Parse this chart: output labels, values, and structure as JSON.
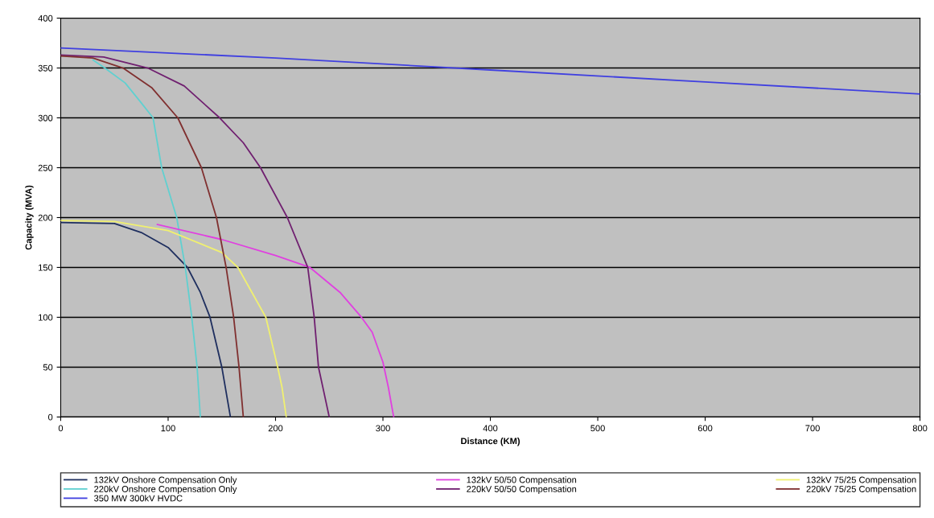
{
  "chart_data": {
    "type": "line",
    "xlabel": "Distance (KM)",
    "ylabel": "Capacity (MVA)",
    "xlim": [
      0,
      800
    ],
    "ylim": [
      0,
      400
    ],
    "xticks": [
      0,
      100,
      200,
      300,
      400,
      500,
      600,
      700,
      800
    ],
    "yticks": [
      0,
      50,
      100,
      150,
      200,
      250,
      300,
      350,
      400
    ],
    "grid": "y",
    "legend": "bottom",
    "marker": "none",
    "line_style": "solid",
    "series": [
      {
        "name": "132kV Onshore Compensation Only",
        "color": "#1f2f5f",
        "x": [
          0,
          50,
          75,
          100,
          118,
          130,
          139,
          150,
          158
        ],
        "values": [
          195,
          194,
          185,
          170,
          150,
          125,
          100,
          50,
          0
        ]
      },
      {
        "name": "220kV Onshore Compensation Only",
        "color": "#60d0d0",
        "x": [
          30,
          41,
          60,
          75,
          86,
          94,
          108,
          116,
          122,
          127,
          130
        ],
        "values": [
          358,
          350,
          335,
          315,
          300,
          250,
          200,
          150,
          100,
          50,
          0
        ]
      },
      {
        "name": "350 MW 300kV HVDC",
        "color": "#4040e0",
        "x": [
          0,
          200,
          400,
          600,
          800
        ],
        "values": [
          370,
          360,
          348,
          336,
          324
        ]
      },
      {
        "name": "132kV 50/50 Compensation",
        "color": "#e040e0",
        "x": [
          90,
          150,
          200,
          232,
          260,
          280,
          290,
          300,
          305,
          310
        ],
        "values": [
          193,
          178,
          162,
          150,
          125,
          100,
          85,
          55,
          30,
          0
        ]
      },
      {
        "name": "220kV 50/50 Compensation",
        "color": "#702070",
        "x": [
          0,
          40,
          81,
          115,
          148,
          170,
          186,
          211,
          230,
          236,
          240,
          245,
          250
        ],
        "values": [
          363,
          361,
          350,
          332,
          300,
          275,
          250,
          200,
          150,
          100,
          50,
          25,
          0
        ]
      },
      {
        "name": "132kV 75/25 Compensation",
        "color": "#f0f070",
        "x": [
          0,
          50,
          100,
          150,
          165,
          191,
          202,
          206,
          210
        ],
        "values": [
          197,
          196,
          187,
          165,
          150,
          100,
          50,
          30,
          0
        ]
      },
      {
        "name": "220kV 75/25 Compensation",
        "color": "#803030",
        "x": [
          0,
          30,
          58,
          85,
          109,
          131,
          145,
          154,
          161,
          166,
          170
        ],
        "values": [
          362,
          360,
          350,
          330,
          300,
          250,
          200,
          150,
          100,
          50,
          0
        ]
      }
    ]
  }
}
